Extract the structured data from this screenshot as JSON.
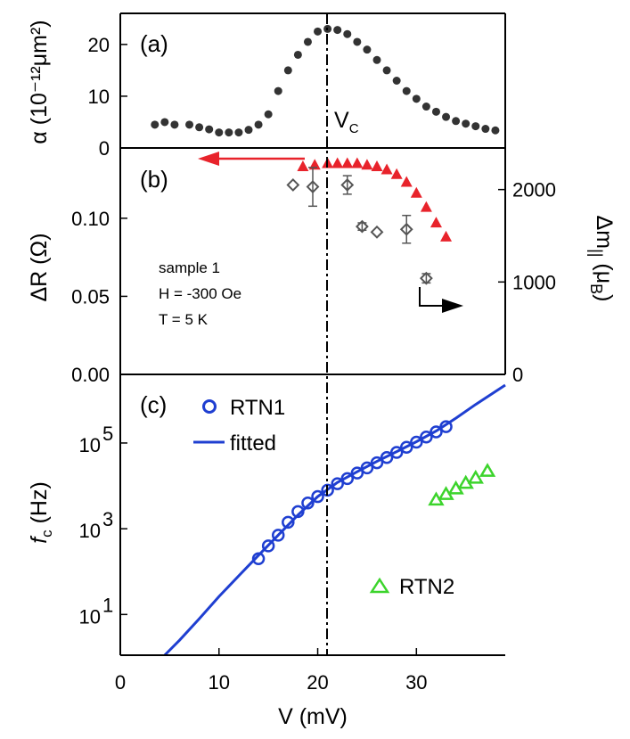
{
  "colors": {
    "dots": "#333333",
    "red": "#e8232b",
    "grey": "#555555",
    "blue": "#1f3fd1",
    "green": "#3cd42c"
  },
  "chart_data": [
    {
      "id": "a",
      "type": "scatter",
      "panel_label": "(a)",
      "ylabel": "α (10⁻¹²μm²)",
      "ylim": [
        0,
        26
      ],
      "yticks": [
        "0",
        "10",
        "20"
      ],
      "x": [
        3.5,
        4.5,
        5.5,
        7,
        8,
        9,
        10,
        11,
        12,
        13,
        14,
        15,
        16,
        17,
        18,
        19,
        20,
        21,
        22,
        23,
        24,
        25,
        26,
        27,
        28,
        29,
        30,
        31,
        32,
        33,
        34,
        35,
        36,
        37,
        38
      ],
      "values": [
        4.5,
        5,
        4.5,
        4.5,
        4,
        3.6,
        3,
        3,
        3,
        3.5,
        4.5,
        6.5,
        11,
        15,
        18,
        20.5,
        22.5,
        23,
        22.8,
        22,
        20.5,
        19,
        17,
        15,
        13,
        11,
        9.5,
        8,
        7,
        6,
        5.2,
        4.7,
        4.2,
        3.7,
        3.4
      ],
      "annotation": "V",
      "annotation_sub": "C"
    },
    {
      "id": "b",
      "type": "scatter",
      "panel_label": "(b)",
      "ylabel": "ΔR (Ω)",
      "ylim": [
        0,
        0.145
      ],
      "yticks": [
        "0.00",
        "0.05",
        "0.10"
      ],
      "y2label": "Δm",
      "y2label_sub": "||",
      "y2label_unit_open": " (μ",
      "y2label_unit_sub": "B",
      "y2label_unit_close": ")",
      "y2lim": [
        0,
        2450
      ],
      "y2ticks": [
        "0",
        "1000",
        "2000"
      ],
      "series": [
        {
          "name": "ΔR",
          "axis": "left",
          "x": [
            18.5,
            19.7,
            21,
            22,
            23,
            24,
            25,
            26,
            27,
            28,
            29,
            30,
            31,
            32,
            33
          ],
          "values": [
            0.133,
            0.134,
            0.135,
            0.135,
            0.135,
            0.135,
            0.134,
            0.133,
            0.131,
            0.128,
            0.123,
            0.116,
            0.107,
            0.097,
            0.088
          ]
        },
        {
          "name": "Δm",
          "axis": "right",
          "x": [
            17.5,
            19.5,
            23,
            24.5,
            26,
            29,
            31
          ],
          "values": [
            2050,
            2030,
            2050,
            1600,
            1540,
            1570,
            1040
          ],
          "err": [
            0,
            210,
            100,
            40,
            0,
            150,
            50
          ]
        }
      ],
      "annotations": [
        "sample 1",
        "H = -300 Oe",
        "T = 5 K"
      ]
    },
    {
      "id": "c",
      "type": "scatter",
      "panel_label": "(c)",
      "ylabel_italic": "f",
      "ylabel_sub": "c",
      "ylabel_unit": " (Hz)",
      "yscale": "log",
      "ylim_log10": [
        0.05,
        6.6
      ],
      "yticks": [
        {
          "base": "10",
          "exp": "1"
        },
        {
          "base": "10",
          "exp": "3"
        },
        {
          "base": "10",
          "exp": "5"
        }
      ],
      "xlabel": "V  (mV)",
      "xlim": [
        0,
        39
      ],
      "xticks": [
        "0",
        "10",
        "20",
        "30"
      ],
      "series": [
        {
          "name": "RTN1",
          "x": [
            14,
            15,
            16,
            17,
            18,
            19,
            20,
            21,
            22,
            23,
            24,
            25,
            26,
            27,
            28,
            29,
            30,
            31,
            32,
            33
          ],
          "log10": [
            2.3,
            2.6,
            2.85,
            3.15,
            3.4,
            3.6,
            3.75,
            3.9,
            4.05,
            4.17,
            4.3,
            4.42,
            4.54,
            4.66,
            4.78,
            4.9,
            5.02,
            5.14,
            5.26,
            5.38
          ]
        },
        {
          "name": "fitted",
          "x": [
            4.5,
            6,
            8,
            10,
            12,
            14,
            16,
            18,
            20,
            22,
            24,
            26,
            28,
            30,
            32,
            34,
            36,
            38,
            39
          ],
          "log10": [
            0.05,
            0.4,
            0.9,
            1.42,
            1.9,
            2.38,
            2.85,
            3.32,
            3.75,
            4.08,
            4.33,
            4.57,
            4.8,
            5.03,
            5.28,
            5.58,
            5.9,
            6.2,
            6.35
          ]
        },
        {
          "name": "RTN2",
          "x": [
            32,
            33,
            34,
            35,
            36,
            37.2
          ],
          "log10": [
            3.67,
            3.8,
            3.93,
            4.06,
            4.18,
            4.34
          ]
        }
      ],
      "legend": [
        "RTN1",
        "fitted",
        "RTN2"
      ]
    }
  ]
}
